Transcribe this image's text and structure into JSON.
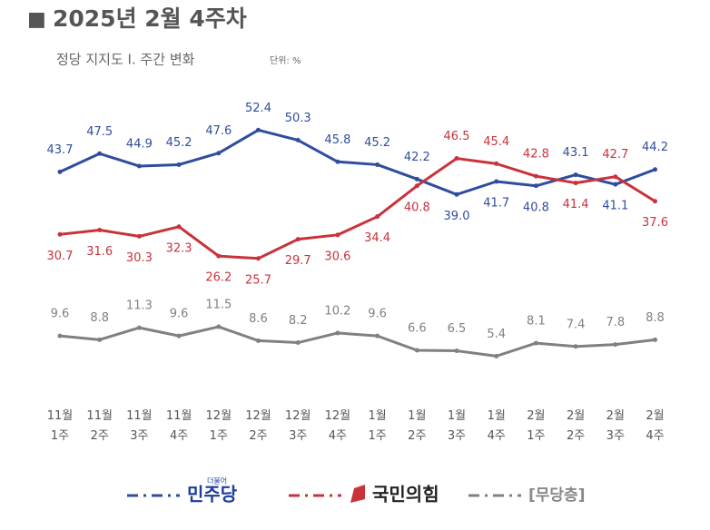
{
  "chart_data": {
    "type": "line",
    "title_marker": "■",
    "title": "2025년 2월 4주차",
    "subtitle": "정당 지지도 Ⅰ. 주간 변화",
    "unit_note": "단위: %",
    "logo_text": "더불어",
    "categories": [
      "11월\n1주",
      "11월\n2주",
      "11월\n3주",
      "11월\n4주",
      "12월\n1주",
      "12월\n2주",
      "12월\n3주",
      "12월\n4주",
      "1월\n1주",
      "1월\n2주",
      "1월\n3주",
      "1월\n4주",
      "2월\n1주",
      "2월\n2주",
      "2월\n3주",
      "2월\n4주"
    ],
    "series": [
      {
        "name": "민주당",
        "color": "#2f4d9e",
        "values": [
          43.7,
          47.5,
          44.9,
          45.2,
          47.6,
          52.4,
          50.3,
          45.8,
          45.2,
          42.2,
          39.0,
          41.7,
          40.8,
          43.1,
          41.1,
          44.2
        ],
        "value_labels": [
          "43.7",
          "47.5",
          "44.9",
          "45.2",
          "47.6",
          "52.4",
          "50.3",
          "45.8",
          "45.2",
          "42.2",
          "39.0",
          "41.7",
          "40.8",
          "43.1",
          "41.1",
          "44.2"
        ]
      },
      {
        "name": "국민의힘",
        "color": "#c9323b",
        "values": [
          30.7,
          31.6,
          30.3,
          32.3,
          26.2,
          25.7,
          29.7,
          30.6,
          34.4,
          40.8,
          46.5,
          45.4,
          42.8,
          41.4,
          42.7,
          37.6
        ],
        "value_labels": [
          "30.7",
          "31.6",
          "30.3",
          "32.3",
          "26.2",
          "25.7",
          "29.7",
          "30.6",
          "34.4",
          "40.8",
          "46.5",
          "45.4",
          "42.8",
          "41.4",
          "42.7",
          "37.6"
        ]
      },
      {
        "name": "[무당층]",
        "color": "#808080",
        "values": [
          9.6,
          8.8,
          11.3,
          9.6,
          11.5,
          8.6,
          8.2,
          10.2,
          9.6,
          6.6,
          6.5,
          5.4,
          8.1,
          7.4,
          7.8,
          8.8
        ],
        "value_labels": [
          "9.6",
          "8.8",
          "11.3",
          "9.6",
          "11.5",
          "8.6",
          "8.2",
          "10.2",
          "9.6",
          "6.6",
          "6.5",
          "5.4",
          "8.1",
          "7.4",
          "7.8",
          "8.8"
        ]
      }
    ]
  }
}
